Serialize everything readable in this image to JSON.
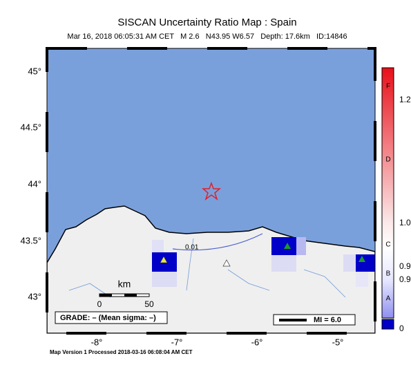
{
  "header": {
    "title": "SISCAN Uncertainty Ratio Map : Spain",
    "subtitle": "Mar 16, 2018 06:05:31 AM CET   M 2.6   N43.95 W6.57   Depth: 17.6km   ID:14846"
  },
  "map": {
    "lat_labels": [
      "45°",
      "44.5°",
      "44°",
      "43.5°",
      "43°"
    ],
    "lon_labels": [
      "-8°",
      "-7°",
      "-6°",
      "-5°"
    ],
    "contour_label": "0.01"
  },
  "scale_bar": {
    "unit": "km",
    "labels": [
      "0",
      "50"
    ]
  },
  "grade_box": "GRADE: – (Mean sigma: –)",
  "mi_legend": "MI = 6.0",
  "colorbar": {
    "letters": [
      "F",
      "D",
      "C",
      "B",
      "A"
    ],
    "values": [
      "1.2",
      "1.0",
      "0.9",
      "0.9",
      "0"
    ]
  },
  "footer": "Map Version 1 Processed 2018-03-16 06:08:04 AM CET"
}
